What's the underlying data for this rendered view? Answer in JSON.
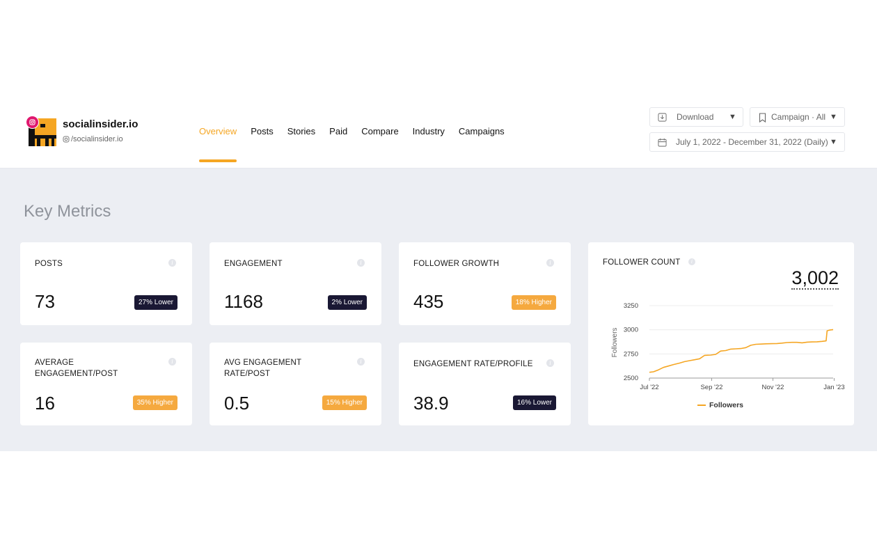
{
  "profile": {
    "name": "socialinsider.io",
    "handle": "/socialinsider.io",
    "avatar_icon": "elephant-logo",
    "network_icon": "instagram-icon",
    "brand_color": "#f5a623"
  },
  "nav": {
    "items": [
      {
        "label": "Overview",
        "active": true
      },
      {
        "label": "Posts"
      },
      {
        "label": "Stories"
      },
      {
        "label": "Paid"
      },
      {
        "label": "Compare"
      },
      {
        "label": "Industry"
      },
      {
        "label": "Campaigns"
      }
    ]
  },
  "toolbar": {
    "download_label": "Download",
    "campaign_label": "Campaign · All",
    "date_range_label": "July 1, 2022 - December 31, 2022 (Daily)"
  },
  "section_title": "Key Metrics",
  "metrics": [
    {
      "label": "POSTS",
      "value": "73",
      "badge": "27% Lower",
      "badge_type": "lower"
    },
    {
      "label": "ENGAGEMENT",
      "value": "1168",
      "badge": "2% Lower",
      "badge_type": "lower"
    },
    {
      "label": "FOLLOWER GROWTH",
      "value": "435",
      "badge": "18% Higher",
      "badge_type": "higher"
    },
    {
      "label": "AVERAGE ENGAGEMENT/POST",
      "value": "16",
      "badge": "35% Higher",
      "badge_type": "higher"
    },
    {
      "label": "AVG ENGAGEMENT RATE/POST",
      "value": "0.5",
      "badge": "15% Higher",
      "badge_type": "higher"
    },
    {
      "label": "ENGAGEMENT RATE/PROFILE",
      "value": "38.9",
      "badge": "16% Lower",
      "badge_type": "lower"
    }
  ],
  "colors": {
    "lower_badge": "#1a1834",
    "higher_badge": "#f5a93f",
    "accent": "#f5a623"
  },
  "follower_card": {
    "label": "FOLLOWER COUNT",
    "value": "3,002"
  },
  "chart_data": {
    "type": "line",
    "ylabel": "Followers",
    "ylim": [
      2500,
      3250
    ],
    "y_ticks": [
      "3250",
      "3000",
      "2750",
      "2500"
    ],
    "x_ticks": [
      "Jul '22",
      "Sep '22",
      "Nov '22",
      "Jan '23"
    ],
    "legend": "bottom",
    "grid": true,
    "series": [
      {
        "name": "Followers",
        "color": "#f5a623",
        "points": [
          [
            "2022-07-01",
            2560
          ],
          [
            "2022-07-05",
            2565
          ],
          [
            "2022-07-10",
            2585
          ],
          [
            "2022-07-15",
            2610
          ],
          [
            "2022-07-20",
            2625
          ],
          [
            "2022-07-25",
            2640
          ],
          [
            "2022-07-31",
            2655
          ],
          [
            "2022-08-05",
            2670
          ],
          [
            "2022-08-10",
            2680
          ],
          [
            "2022-08-15",
            2690
          ],
          [
            "2022-08-20",
            2700
          ],
          [
            "2022-08-25",
            2735
          ],
          [
            "2022-08-31",
            2738
          ],
          [
            "2022-09-05",
            2745
          ],
          [
            "2022-09-10",
            2780
          ],
          [
            "2022-09-15",
            2785
          ],
          [
            "2022-09-20",
            2800
          ],
          [
            "2022-09-25",
            2803
          ],
          [
            "2022-09-30",
            2806
          ],
          [
            "2022-10-05",
            2815
          ],
          [
            "2022-10-10",
            2840
          ],
          [
            "2022-10-15",
            2850
          ],
          [
            "2022-10-20",
            2852
          ],
          [
            "2022-10-25",
            2855
          ],
          [
            "2022-10-31",
            2856
          ],
          [
            "2022-11-05",
            2858
          ],
          [
            "2022-11-10",
            2862
          ],
          [
            "2022-11-15",
            2868
          ],
          [
            "2022-11-20",
            2870
          ],
          [
            "2022-11-25",
            2870
          ],
          [
            "2022-11-30",
            2865
          ],
          [
            "2022-12-05",
            2872
          ],
          [
            "2022-12-10",
            2874
          ],
          [
            "2022-12-15",
            2876
          ],
          [
            "2022-12-20",
            2880
          ],
          [
            "2022-12-24",
            2885
          ],
          [
            "2022-12-25",
            2990
          ],
          [
            "2022-12-28",
            2998
          ],
          [
            "2022-12-31",
            3002
          ]
        ]
      }
    ]
  }
}
